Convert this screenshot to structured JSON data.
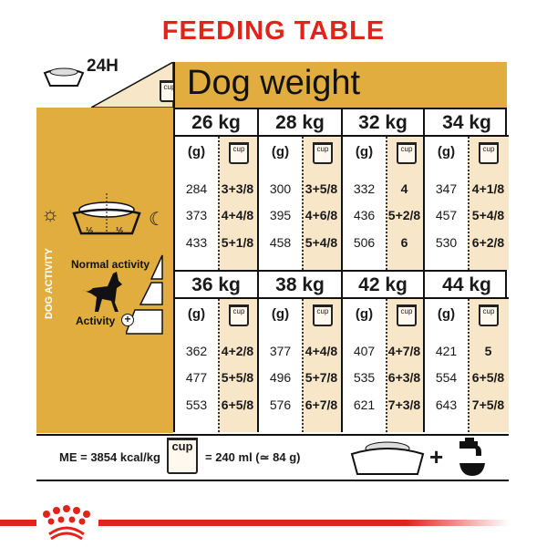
{
  "title": "FEEDING TABLE",
  "header": {
    "period": "24H",
    "title": "Dog weight",
    "cup_label": "cup"
  },
  "side": {
    "vertical_label": "DOG ACTIVITY",
    "half_left": "½",
    "half_right": "½",
    "normal_activity": "Normal activity",
    "activity_plus": "Activity"
  },
  "columns_labels": {
    "grams": "(g)",
    "cup": "cup"
  },
  "blocks": [
    [
      {
        "weight": "26 kg",
        "rows": [
          [
            "284",
            "3+3/8"
          ],
          [
            "373",
            "4+4/8"
          ],
          [
            "433",
            "5+1/8"
          ]
        ]
      },
      {
        "weight": "28 kg",
        "rows": [
          [
            "300",
            "3+5/8"
          ],
          [
            "395",
            "4+6/8"
          ],
          [
            "458",
            "5+4/8"
          ]
        ]
      },
      {
        "weight": "32 kg",
        "rows": [
          [
            "332",
            "4"
          ],
          [
            "436",
            "5+2/8"
          ],
          [
            "506",
            "6"
          ]
        ]
      },
      {
        "weight": "34 kg",
        "rows": [
          [
            "347",
            "4+1/8"
          ],
          [
            "457",
            "5+4/8"
          ],
          [
            "530",
            "6+2/8"
          ]
        ]
      }
    ],
    [
      {
        "weight": "36 kg",
        "rows": [
          [
            "362",
            "4+2/8"
          ],
          [
            "477",
            "5+5/8"
          ],
          [
            "553",
            "6+5/8"
          ]
        ]
      },
      {
        "weight": "38 kg",
        "rows": [
          [
            "377",
            "4+4/8"
          ],
          [
            "496",
            "5+7/8"
          ],
          [
            "576",
            "6+7/8"
          ]
        ]
      },
      {
        "weight": "42 kg",
        "rows": [
          [
            "407",
            "4+7/8"
          ],
          [
            "535",
            "6+3/8"
          ],
          [
            "621",
            "7+3/8"
          ]
        ]
      },
      {
        "weight": "44 kg",
        "rows": [
          [
            "421",
            "5"
          ],
          [
            "554",
            "6+5/8"
          ],
          [
            "643",
            "7+5/8"
          ]
        ]
      }
    ]
  ],
  "footer": {
    "energy": "ME = 3854 kcal/kg",
    "cup_label": "cup",
    "cup_equivalence": "= 240 ml (≃ 84 g)",
    "plus": "+"
  },
  "colors": {
    "brand_red": "#e2231a",
    "gold": "#e1ad3f",
    "cup_shade": "#f8e6c9"
  }
}
